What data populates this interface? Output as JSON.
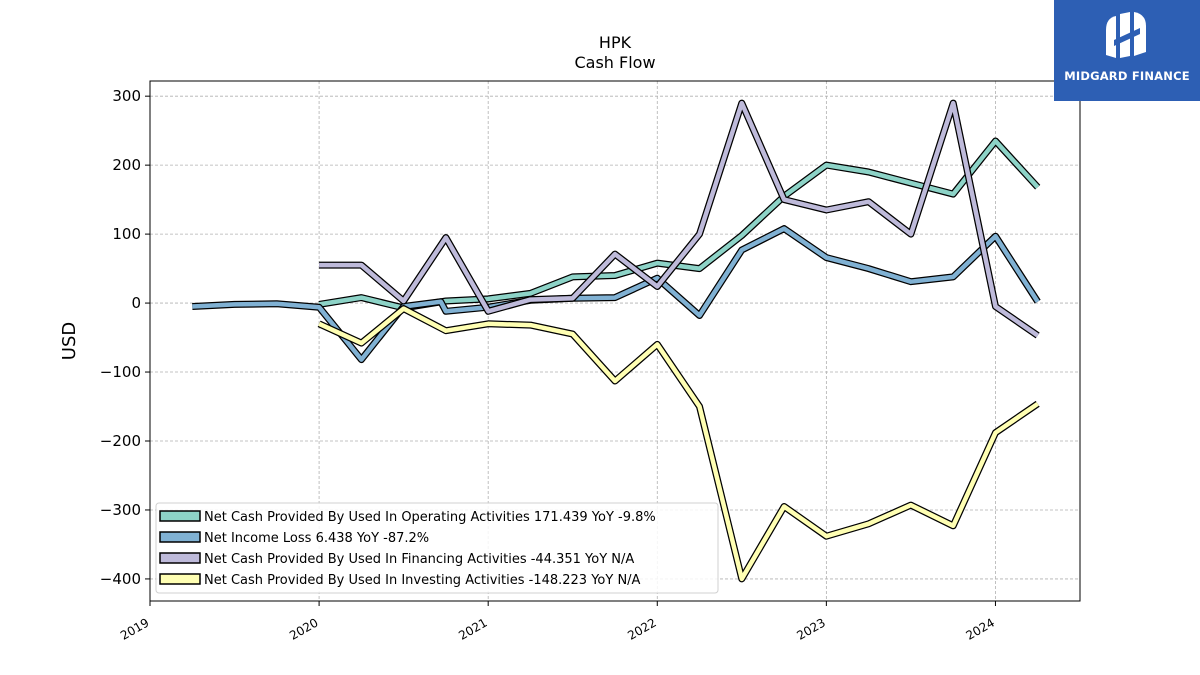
{
  "brand": {
    "name": "MIDGARD FINANCE",
    "bg_color": "#2d5fb4"
  },
  "chart_data": {
    "type": "line",
    "title": "HPK",
    "subtitle": "Cash Flow",
    "ylabel": "USD",
    "xlabel": "",
    "xlim": [
      2019.0,
      2024.5
    ],
    "ylim": [
      -432,
      322
    ],
    "yticks": [
      300,
      200,
      100,
      0,
      -100,
      -200,
      -300,
      -400
    ],
    "ytick_labels": [
      "300",
      "200",
      "100",
      "0",
      "−100",
      "−200",
      "−300",
      "−400"
    ],
    "xticks": [
      2019,
      2020,
      2021,
      2022,
      2023,
      2024
    ],
    "xtick_labels": [
      "2019",
      "2020",
      "2021",
      "2022",
      "2023",
      "2024"
    ],
    "grid": true,
    "legend_position": "bottom-left",
    "series": [
      {
        "name": "Net Cash Provided By Used In Operating Activities",
        "legend_label": "Net Cash Provided By Used In Operating Activities  171.439 YoY -9.8%",
        "color": "#8dd3c7",
        "x": [
          2020.0,
          2020.25,
          2020.5,
          2020.75,
          2021.0,
          2021.25,
          2021.5,
          2021.75,
          2022.0,
          2022.25,
          2022.5,
          2022.75,
          2023.0,
          2023.25,
          2023.5,
          2023.75,
          2024.0,
          2024.25
        ],
        "y": [
          -2,
          8,
          -7,
          3,
          6,
          14,
          38,
          40,
          58,
          50,
          98,
          155,
          200,
          190,
          174,
          158,
          235,
          168
        ]
      },
      {
        "name": "Net Income Loss",
        "legend_label": "Net Income Loss  6.438 YoY -87.2%",
        "color": "#80b1d3",
        "x": [
          2019.25,
          2019.5,
          2019.75,
          2020.0,
          2020.25,
          2020.5,
          2020.72,
          2020.75,
          2021.0,
          2021.25,
          2021.5,
          2021.75,
          2022.0,
          2022.25,
          2022.5,
          2022.75,
          2023.0,
          2023.25,
          2023.5,
          2023.75,
          2024.0,
          2024.25
        ],
        "y": [
          -5,
          -2,
          -1,
          -6,
          -82,
          -5,
          2,
          -12,
          -6,
          4,
          7,
          8,
          36,
          -18,
          77,
          108,
          66,
          50,
          31,
          38,
          97,
          2
        ]
      },
      {
        "name": "Net Cash Provided By Used In Financing Activities",
        "legend_label": "Net Cash Provided By Used In Financing Activities  -44.351 YoY N/A",
        "color": "#bebada",
        "x": [
          2020.0,
          2020.25,
          2020.5,
          2020.75,
          2021.0,
          2021.25,
          2021.5,
          2021.75,
          2022.0,
          2022.25,
          2022.5,
          2022.75,
          2023.0,
          2023.25,
          2023.5,
          2023.75,
          2024.0,
          2024.25
        ],
        "y": [
          55,
          55,
          3,
          95,
          -12,
          5,
          7,
          71,
          24,
          100,
          290,
          150,
          135,
          147,
          100,
          290,
          -5,
          -47
        ]
      },
      {
        "name": "Net Cash Provided By Used In Investing Activities",
        "legend_label": "Net Cash Provided By Used In Investing Activities  -148.223 YoY N/A",
        "color": "#ffffb3",
        "x": [
          2020.0,
          2020.25,
          2020.5,
          2020.75,
          2021.0,
          2021.25,
          2021.5,
          2021.75,
          2022.0,
          2022.25,
          2022.5,
          2022.75,
          2023.0,
          2023.25,
          2023.5,
          2023.75,
          2024.0,
          2024.25
        ],
        "y": [
          -30,
          -58,
          -8,
          -40,
          -30,
          -32,
          -45,
          -113,
          -60,
          -150,
          -400,
          -295,
          -338,
          -320,
          -293,
          -323,
          -188,
          -146
        ]
      }
    ]
  }
}
